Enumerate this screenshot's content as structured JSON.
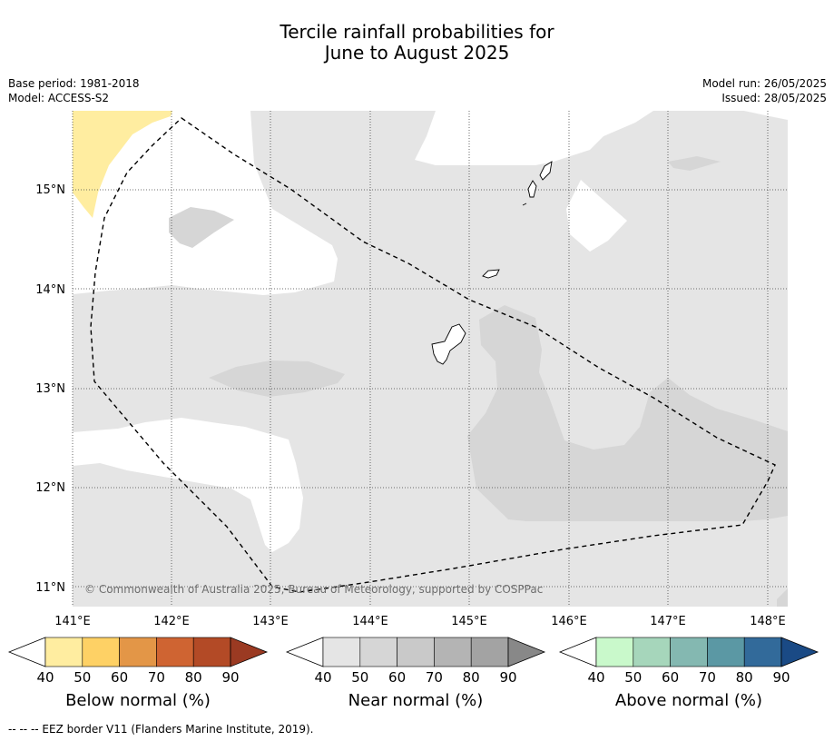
{
  "header": {
    "title_line1": "Tercile rainfall probabilities for",
    "title_line2": "June to August 2025",
    "base_period": "Base period: 1981-2018",
    "model": "Model: ACCESS-S2",
    "model_run": "Model run: 26/05/2025",
    "issued": "Issued: 28/05/2025"
  },
  "map": {
    "lon_labels": [
      "141°E",
      "142°E",
      "143°E",
      "144°E",
      "145°E",
      "146°E",
      "147°E",
      "148°E"
    ],
    "lat_labels": [
      "15°N",
      "14°N",
      "13°N",
      "12°N",
      "11°N"
    ],
    "copyright": "© Commonwealth of Australia 2025, Bureau of Meteorology, supported by COSPPac",
    "colors": {
      "near_40_50": "#e5e5e5",
      "near_50_60": "#d6d6d6",
      "below_40_50": "#ffeda0",
      "eez_line": "#000000"
    }
  },
  "colorbars": [
    {
      "name": "below",
      "label": "Below normal (%)",
      "ticks": [
        "40",
        "50",
        "60",
        "70",
        "80",
        "90"
      ],
      "colors": [
        "#ffffff",
        "#ffeda0",
        "#fed165",
        "#e39647",
        "#cf6432",
        "#b34a26",
        "#9b3a22"
      ]
    },
    {
      "name": "near",
      "label": "Near normal (%)",
      "ticks": [
        "40",
        "50",
        "60",
        "70",
        "80",
        "90"
      ],
      "colors": [
        "#ffffff",
        "#e5e5e5",
        "#d6d6d6",
        "#c9c9c9",
        "#b4b4b4",
        "#a3a3a3",
        "#888888"
      ]
    },
    {
      "name": "above",
      "label": "Above normal (%)",
      "ticks": [
        "40",
        "50",
        "60",
        "70",
        "80",
        "90"
      ],
      "colors": [
        "#ffffff",
        "#c9f9cb",
        "#a6d6bb",
        "#84b8b1",
        "#5b98a4",
        "#326a9a",
        "#1a4a85"
      ]
    }
  ],
  "footnote": "--  --  -- EEZ border V11 (Flanders Marine Institute, 2019)."
}
